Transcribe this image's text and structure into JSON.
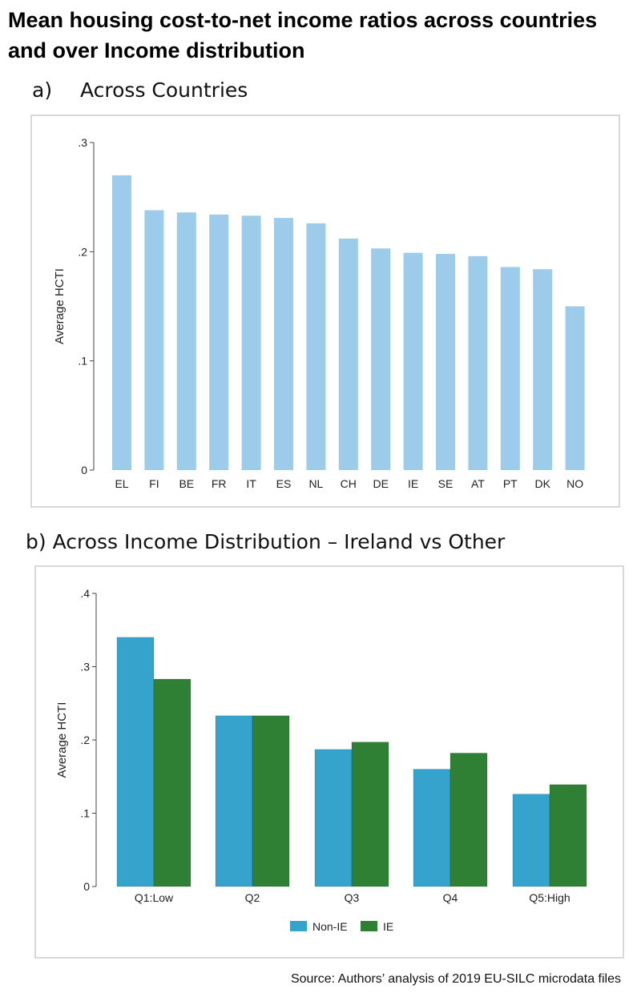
{
  "title": "Mean housing cost-to-net income ratios across countries and over Income distribution",
  "source": "Source: Authors’ analysis of 2019 EU-SILC microdata files",
  "chart_data": [
    {
      "type": "bar",
      "panel_label": "a)",
      "title": "Across Countries",
      "ylabel": "Average HCTI",
      "xlabel": "",
      "ylim": [
        0,
        0.3
      ],
      "yticks": [
        0,
        0.1,
        0.2,
        0.3
      ],
      "ytick_labels": [
        "0",
        ".1",
        ".2",
        ".3"
      ],
      "grid": false,
      "color": "#9dcceb",
      "categories": [
        "EL",
        "FI",
        "BE",
        "FR",
        "IT",
        "ES",
        "NL",
        "CH",
        "DE",
        "IE",
        "SE",
        "AT",
        "PT",
        "DK",
        "NO"
      ],
      "values": [
        0.27,
        0.238,
        0.236,
        0.234,
        0.233,
        0.231,
        0.226,
        0.212,
        0.203,
        0.199,
        0.198,
        0.196,
        0.186,
        0.184,
        0.15
      ]
    },
    {
      "type": "bar",
      "title": "b) Across Income Distribution – Ireland vs Other",
      "ylabel": "Average HCTI",
      "xlabel": "",
      "ylim": [
        0,
        0.4
      ],
      "yticks": [
        0,
        0.1,
        0.2,
        0.3,
        0.4
      ],
      "ytick_labels": [
        "0",
        ".1",
        ".2",
        ".3",
        ".4"
      ],
      "grid": false,
      "legend_position": "bottom",
      "categories": [
        "Q1:Low",
        "Q2",
        "Q3",
        "Q4",
        "Q5:High"
      ],
      "series": [
        {
          "name": "Non-IE",
          "color": "#35a3cc",
          "values": [
            0.34,
            0.233,
            0.187,
            0.16,
            0.126
          ]
        },
        {
          "name": "IE",
          "color": "#2f7f34",
          "values": [
            0.283,
            0.233,
            0.197,
            0.182,
            0.139
          ]
        }
      ]
    }
  ]
}
